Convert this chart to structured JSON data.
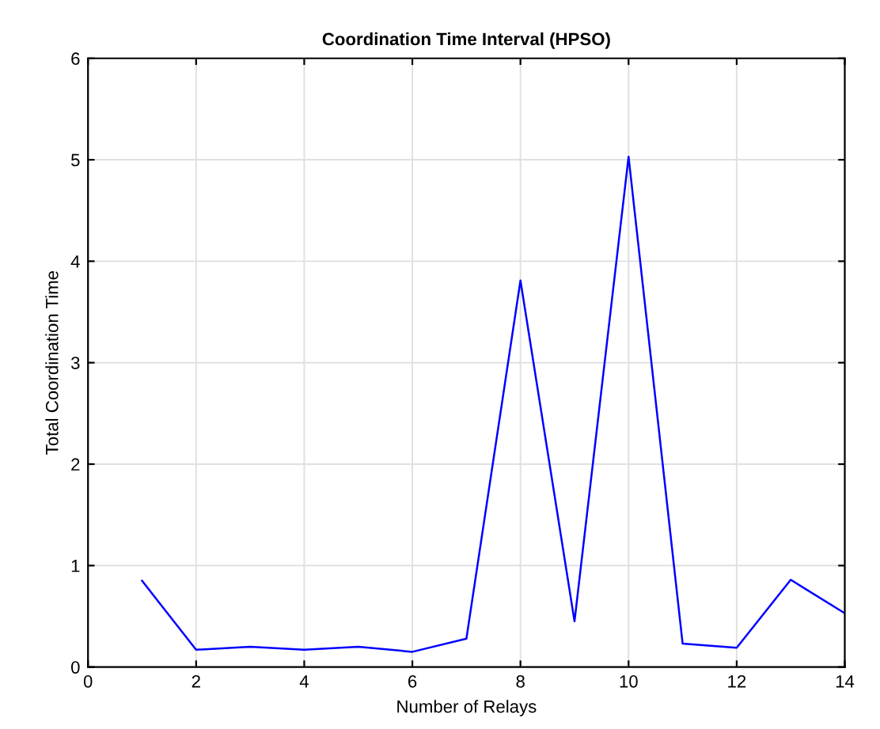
{
  "chart_data": {
    "type": "line",
    "title": "Coordination Time Interval (HPSO)",
    "xlabel": "Number of Relays",
    "ylabel": "Total Coordination Time",
    "x": [
      1,
      2,
      3,
      4,
      5,
      6,
      7,
      8,
      9,
      10,
      11,
      12,
      13,
      14
    ],
    "series": [
      {
        "color": "#0000ff",
        "values": [
          0.85,
          0.17,
          0.2,
          0.17,
          0.2,
          0.15,
          0.28,
          3.81,
          0.45,
          5.03,
          0.23,
          0.19,
          0.86,
          0.53
        ]
      }
    ],
    "xlim": [
      0,
      14
    ],
    "xticks": [
      0,
      2,
      4,
      6,
      8,
      10,
      12,
      14
    ],
    "ylim": [
      0,
      6
    ],
    "yticks": [
      0,
      1,
      2,
      3,
      4,
      5,
      6
    ],
    "grid": true,
    "marker": "none",
    "line_style": "solid"
  }
}
